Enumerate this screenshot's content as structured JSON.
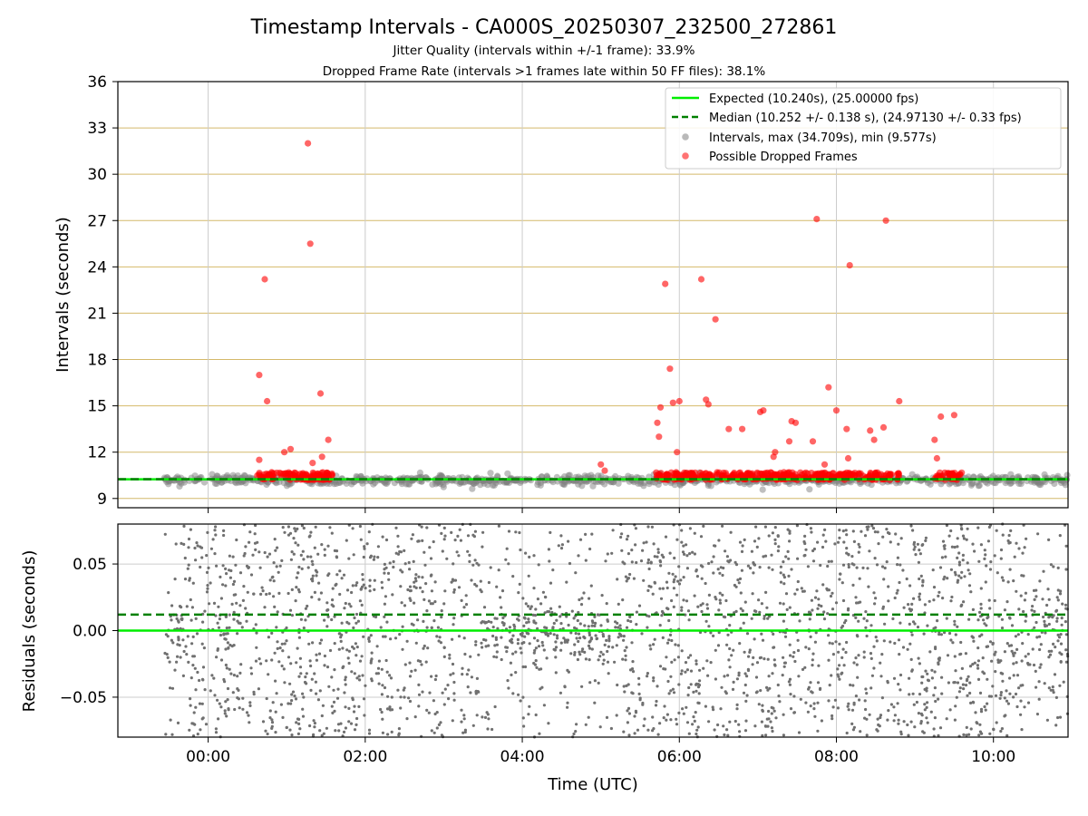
{
  "colors": {
    "expected": "#00ee00",
    "median": "#008000",
    "intervals": "#808080",
    "dropped": "#ff0000",
    "hgrid_top": "#d4b96a",
    "vgrid": "#cccccc",
    "residual": "#707070"
  },
  "chart_data": [
    {
      "type": "scatter",
      "title": "Timestamp Intervals - CA000S_20250307_232500_272861",
      "subtitle_1": "Jitter Quality (intervals within +/-1 frame): 33.9%",
      "subtitle_2": "Dropped Frame Rate (intervals >1 frames late within 50 FF files): 38.1%",
      "xlabel": "",
      "ylabel": "Intervals (seconds)",
      "x_unit": "hours UTC relative to 00:00",
      "xlim": [
        -1.15,
        10.95
      ],
      "ylim": [
        8.4,
        36
      ],
      "yticks": [
        9,
        12,
        15,
        18,
        21,
        24,
        27,
        30,
        33,
        36
      ],
      "ytick_labels": [
        "9",
        "12",
        "15",
        "18",
        "21",
        "24",
        "27",
        "30",
        "33",
        "36"
      ],
      "grid": "horizontal (tan) and vertical (gray)",
      "legend_position": "top-right",
      "legend": [
        "Expected (10.240s), (25.00000 fps)",
        "Median (10.252 +/- 0.138 s), (24.97130 +/- 0.33 fps)",
        "Intervals, max (34.709s), min (9.577s)",
        "Possible Dropped Frames"
      ],
      "expected_value": 10.24,
      "median_value": 10.252,
      "interval_bands": [
        {
          "x_start": -0.6,
          "x_end": 10.95,
          "center": 10.2,
          "spread": 0.25
        }
      ],
      "dropped_clusters": [
        {
          "x_start": 0.62,
          "x_end": 1.6,
          "y_low": 10.2,
          "y_high": 10.7
        },
        {
          "x_start": 5.7,
          "x_end": 8.8,
          "y_low": 10.2,
          "y_high": 10.7
        },
        {
          "x_start": 9.25,
          "x_end": 9.6,
          "y_low": 10.2,
          "y_high": 10.7
        }
      ],
      "dropped_points": [
        {
          "x": 0.65,
          "y": 17.0
        },
        {
          "x": 0.72,
          "y": 23.2
        },
        {
          "x": 0.75,
          "y": 15.3
        },
        {
          "x": 0.65,
          "y": 11.5
        },
        {
          "x": 0.97,
          "y": 12.0
        },
        {
          "x": 1.05,
          "y": 12.2
        },
        {
          "x": 1.27,
          "y": 32.0
        },
        {
          "x": 1.3,
          "y": 25.5
        },
        {
          "x": 1.33,
          "y": 11.3
        },
        {
          "x": 1.43,
          "y": 15.8
        },
        {
          "x": 1.45,
          "y": 11.7
        },
        {
          "x": 1.53,
          "y": 12.8
        },
        {
          "x": 5.0,
          "y": 11.2
        },
        {
          "x": 5.05,
          "y": 10.8
        },
        {
          "x": 5.72,
          "y": 13.9
        },
        {
          "x": 5.74,
          "y": 13.0
        },
        {
          "x": 5.76,
          "y": 14.9
        },
        {
          "x": 5.82,
          "y": 22.9
        },
        {
          "x": 5.88,
          "y": 17.4
        },
        {
          "x": 5.92,
          "y": 15.2
        },
        {
          "x": 5.97,
          "y": 12.0
        },
        {
          "x": 6.0,
          "y": 15.3
        },
        {
          "x": 6.28,
          "y": 23.2
        },
        {
          "x": 6.34,
          "y": 15.4
        },
        {
          "x": 6.37,
          "y": 15.1
        },
        {
          "x": 6.46,
          "y": 20.6
        },
        {
          "x": 6.63,
          "y": 13.5
        },
        {
          "x": 6.8,
          "y": 13.5
        },
        {
          "x": 7.03,
          "y": 14.6
        },
        {
          "x": 7.07,
          "y": 14.7
        },
        {
          "x": 7.2,
          "y": 11.7
        },
        {
          "x": 7.22,
          "y": 12.0
        },
        {
          "x": 7.4,
          "y": 12.7
        },
        {
          "x": 7.43,
          "y": 14.0
        },
        {
          "x": 7.48,
          "y": 13.9
        },
        {
          "x": 7.7,
          "y": 12.7
        },
        {
          "x": 7.75,
          "y": 27.1
        },
        {
          "x": 7.85,
          "y": 11.2
        },
        {
          "x": 7.9,
          "y": 16.2
        },
        {
          "x": 8.0,
          "y": 14.7
        },
        {
          "x": 8.13,
          "y": 13.5
        },
        {
          "x": 8.15,
          "y": 11.6
        },
        {
          "x": 8.17,
          "y": 24.1
        },
        {
          "x": 8.43,
          "y": 13.4
        },
        {
          "x": 8.48,
          "y": 12.8
        },
        {
          "x": 8.6,
          "y": 13.6
        },
        {
          "x": 8.63,
          "y": 27.0
        },
        {
          "x": 8.8,
          "y": 15.3
        },
        {
          "x": 9.25,
          "y": 12.8
        },
        {
          "x": 9.28,
          "y": 11.6
        },
        {
          "x": 9.33,
          "y": 14.3
        },
        {
          "x": 9.5,
          "y": 14.4
        }
      ]
    },
    {
      "type": "scatter",
      "title": "",
      "xlabel": "Time (UTC)",
      "ylabel": "Residuals (seconds)",
      "x_unit": "hours UTC relative to 00:00",
      "xlim": [
        -1.15,
        10.95
      ],
      "ylim": [
        -0.08,
        0.08
      ],
      "yticks": [
        -0.05,
        0.0,
        0.05
      ],
      "ytick_labels": [
        "−0.05",
        "0.00",
        "0.05"
      ],
      "xticks": [
        0,
        2,
        4,
        6,
        8,
        10
      ],
      "xtick_labels": [
        "00:00",
        "02:00",
        "04:00",
        "06:00",
        "08:00",
        "10:00"
      ],
      "grid": true,
      "expected_residual": 0.0,
      "median_residual": 0.012,
      "residual_range": [
        -0.08,
        0.08
      ],
      "residual_start": -0.55,
      "residual_end": 10.95,
      "dense_bands": [
        {
          "x_start": -0.55,
          "x_end": -0.25,
          "spread": 0.025
        },
        {
          "x_start": 3.5,
          "x_end": 5.3,
          "spread": 0.02
        },
        {
          "x_start": 10.45,
          "x_end": 10.95,
          "spread": 0.03
        }
      ]
    }
  ]
}
